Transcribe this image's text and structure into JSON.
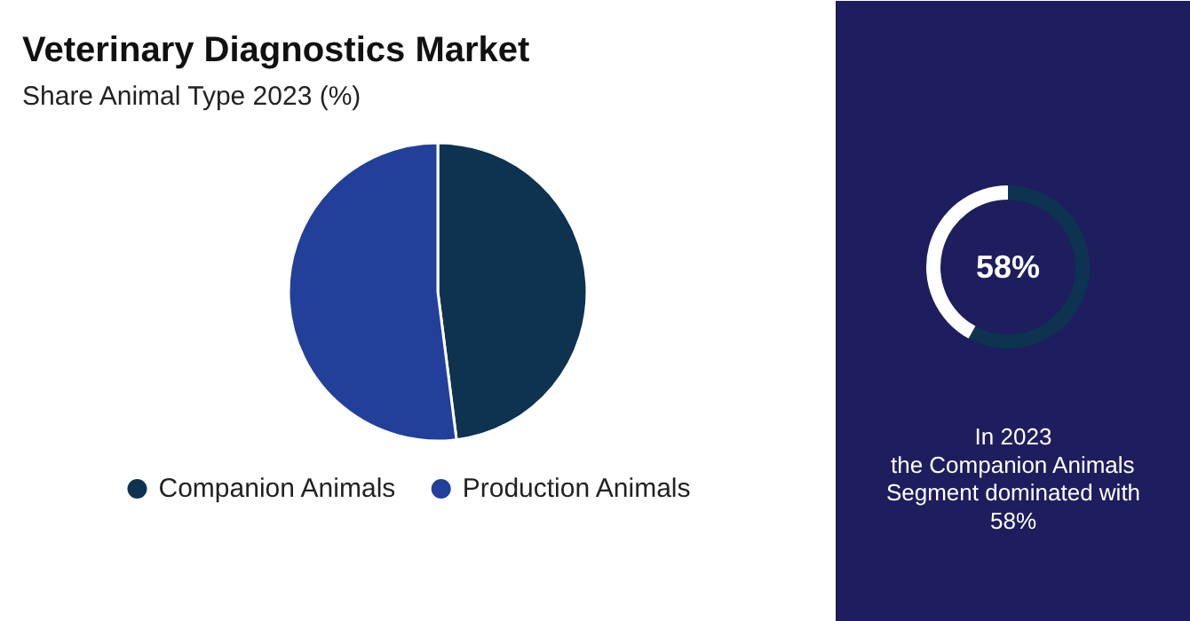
{
  "chart_data": [
    {
      "type": "pie",
      "title": "Veterinary Diagnostics Market",
      "subtitle": "Share Animal Type 2023 (%)",
      "categories": [
        "Companion Animals",
        "Production Animals"
      ],
      "values": [
        48,
        52
      ],
      "colors": [
        "#0d3350",
        "#22409a"
      ],
      "legend": "bottom"
    },
    {
      "type": "donut",
      "categories": [
        null,
        null
      ],
      "values": [
        58,
        42
      ],
      "colors": [
        "#0d3350",
        "#ffffff"
      ],
      "value_labels": [
        "58%",
        null
      ],
      "annotations": [
        "In 2023\nthe Companion Animals\nSegment dominated with\n58%"
      ]
    }
  ]
}
